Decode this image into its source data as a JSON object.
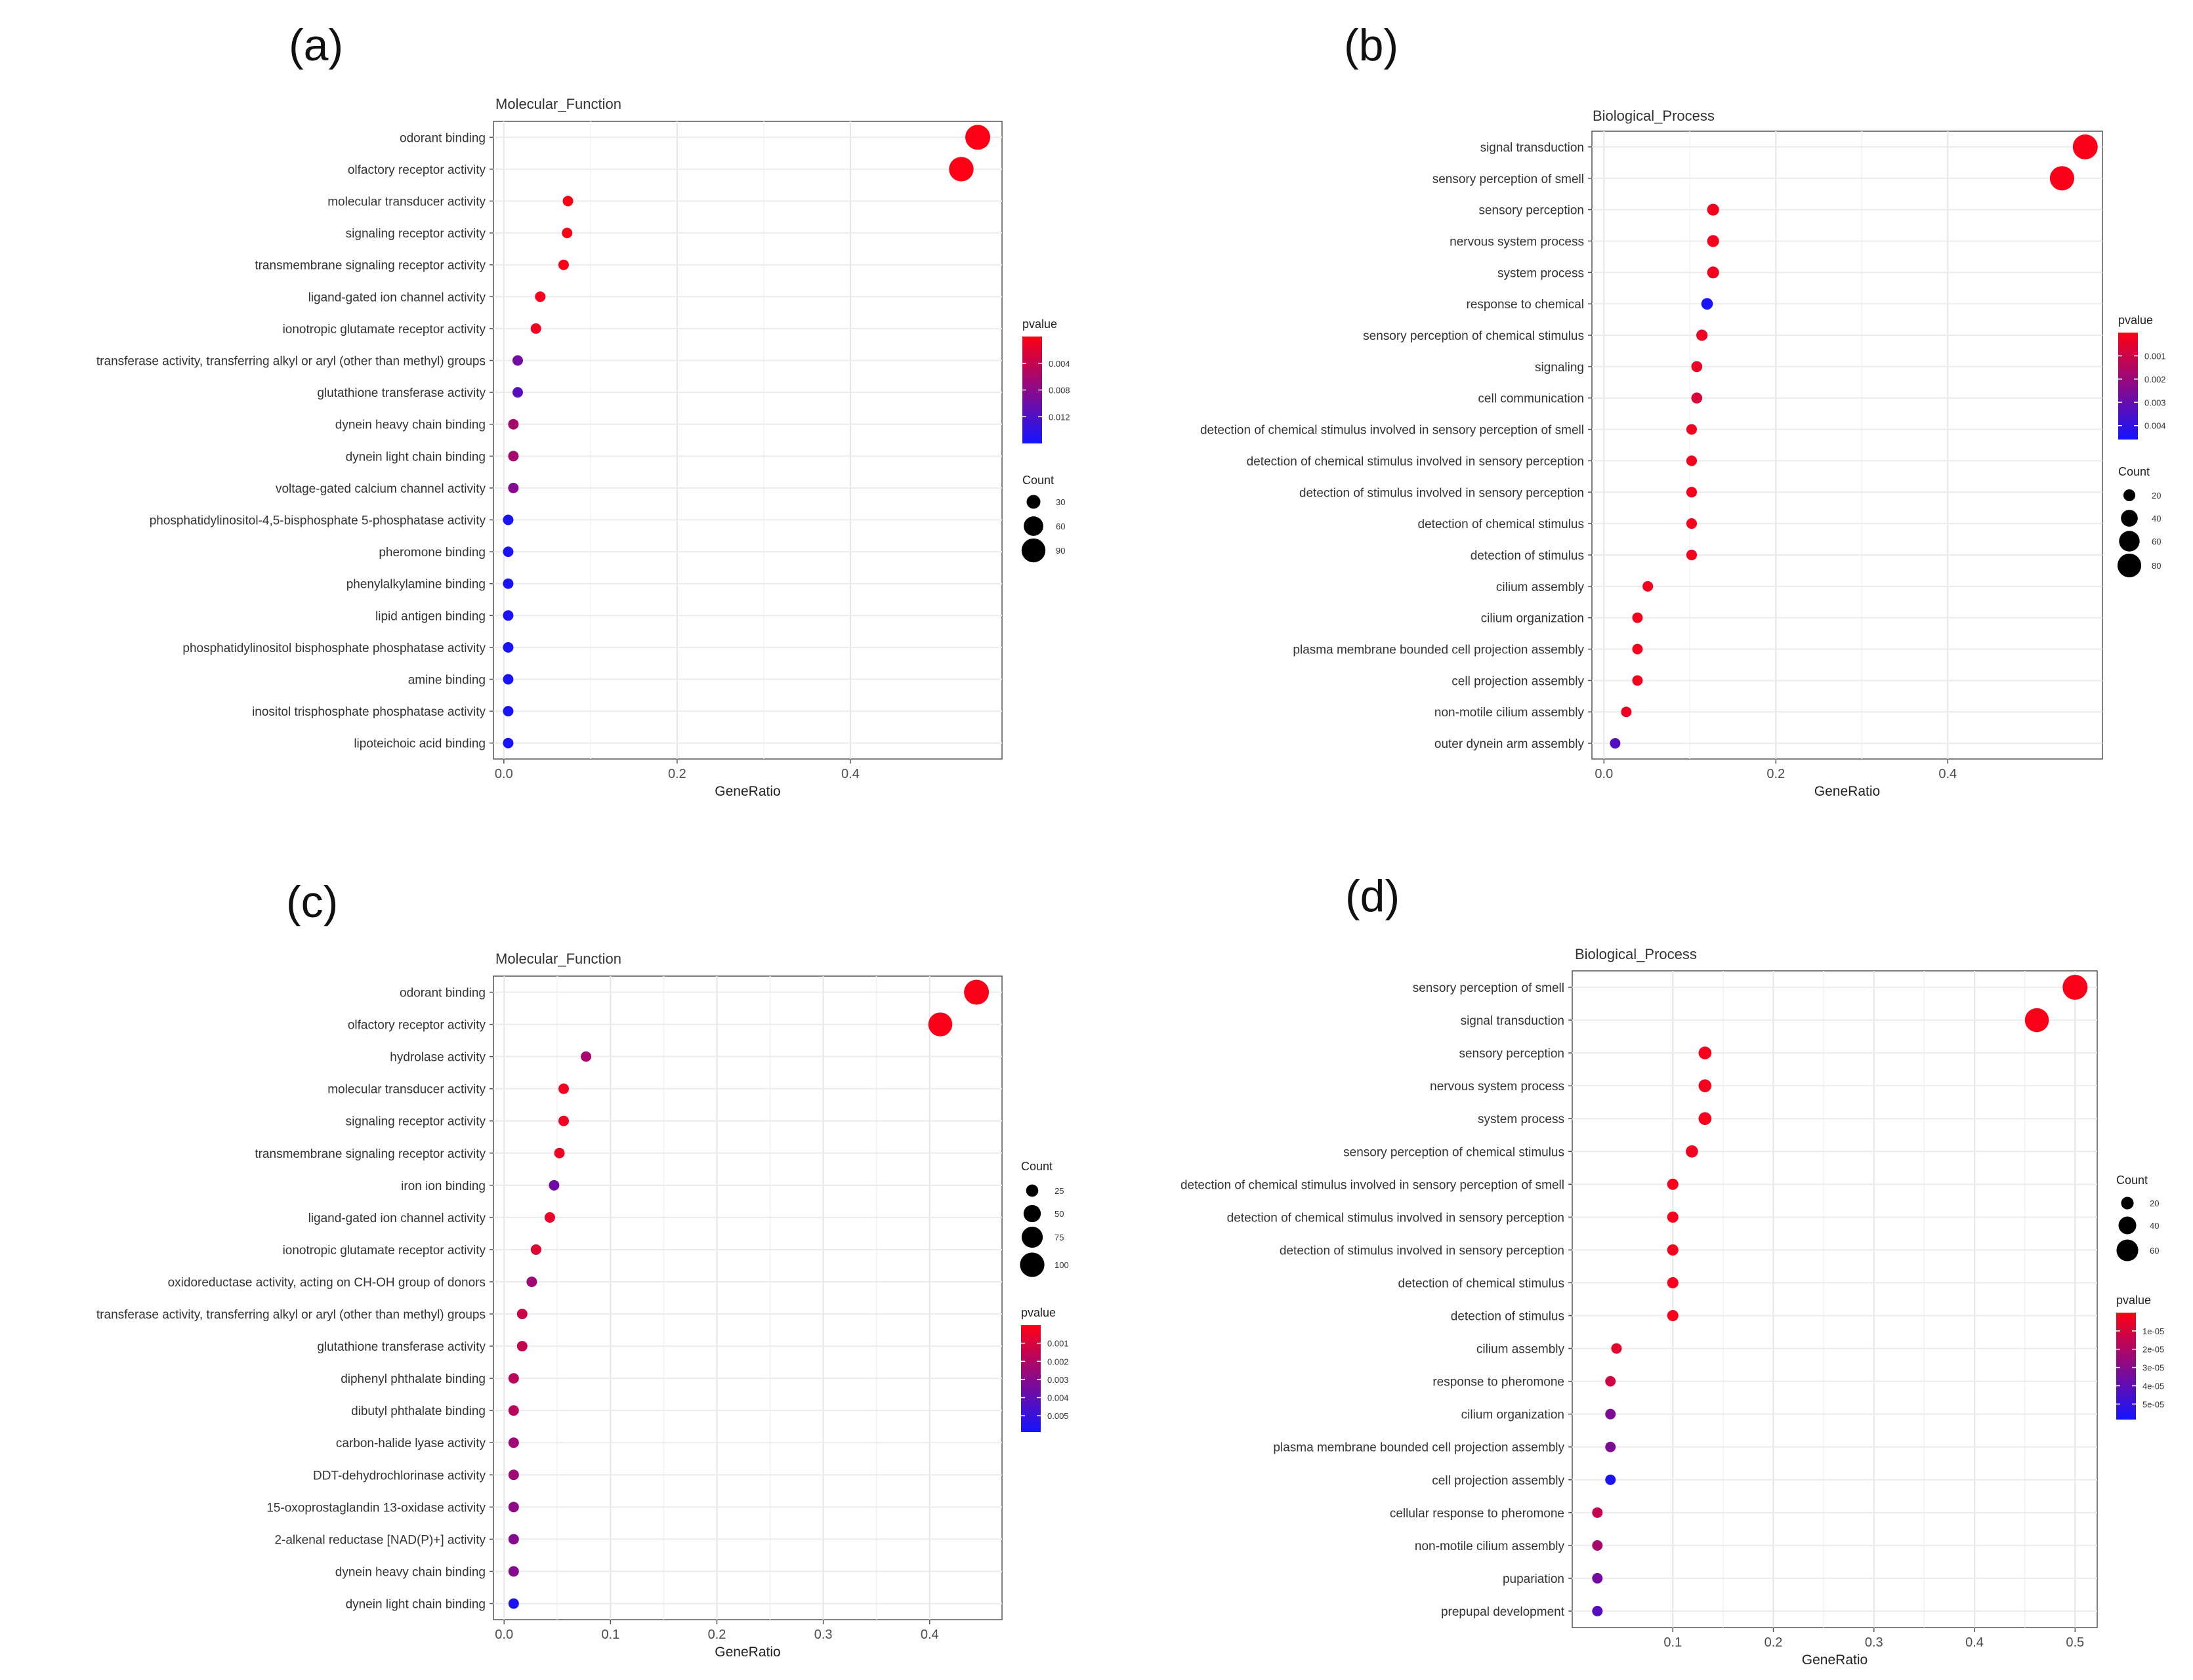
{
  "panels": [
    {
      "label": "(a)"
    },
    {
      "label": "(b)"
    },
    {
      "label": "(c)"
    },
    {
      "label": "(d)"
    }
  ],
  "chart_data": [
    {
      "type": "scatter",
      "title": "Molecular_Function",
      "xlabel": "GeneRatio",
      "xlim": [
        -0.012,
        0.575
      ],
      "xticks": [
        0.0,
        0.2,
        0.4
      ],
      "xtick_labels": [
        "0.0",
        "0.2",
        "0.4"
      ],
      "pvalue_legend": {
        "title": "pvalue",
        "ticks": [
          0.004,
          0.008,
          0.012
        ],
        "labels": [
          "0.004",
          "0.008",
          "0.012"
        ],
        "range": [
          0.0,
          0.016
        ]
      },
      "count_legend": {
        "title": "Count",
        "values": [
          30,
          60,
          90
        ],
        "labels": [
          "30",
          "60",
          "90"
        ]
      },
      "terms": [
        "odorant binding",
        "olfactory receptor activity",
        "molecular transducer activity",
        "signaling receptor activity",
        "transmembrane signaling receptor activity",
        "ligand-gated ion channel activity",
        "ionotropic glutamate receptor activity",
        "transferase activity, transferring alkyl or aryl (other than methyl) groups",
        "glutathione transferase activity",
        "dynein heavy chain binding",
        "dynein light chain binding",
        "voltage-gated calcium channel activity",
        "phosphatidylinositol-4,5-bisphosphate 5-phosphatase activity",
        "pheromone binding",
        "phenylalkylamine binding",
        "lipid antigen binding",
        "phosphatidylinositol bisphosphate phosphatase activity",
        "amine binding",
        "inositol trisphosphate phosphatase activity",
        "lipoteichoic acid binding"
      ],
      "gene_ratio": [
        0.547,
        0.528,
        0.074,
        0.073,
        0.069,
        0.042,
        0.037,
        0.016,
        0.016,
        0.011,
        0.011,
        0.011,
        0.005,
        0.005,
        0.005,
        0.005,
        0.005,
        0.005,
        0.005,
        0.005
      ],
      "pvalue": [
        0.0001,
        0.0001,
        0.0001,
        0.0001,
        0.0002,
        0.0006,
        0.0008,
        0.0095,
        0.0115,
        0.006,
        0.006,
        0.0085,
        0.0155,
        0.0155,
        0.0155,
        0.0155,
        0.0155,
        0.0155,
        0.0155,
        0.0155
      ],
      "count": [
        98,
        95,
        13,
        13,
        12,
        8,
        7,
        3,
        3,
        2,
        2,
        2,
        1,
        1,
        1,
        1,
        1,
        1,
        1,
        1
      ]
    },
    {
      "type": "scatter",
      "title": "Biological_Process",
      "xlabel": "GeneRatio",
      "xlim": [
        -0.014,
        0.58
      ],
      "xticks": [
        0.0,
        0.2,
        0.4
      ],
      "xtick_labels": [
        "0.0",
        "0.2",
        "0.4"
      ],
      "pvalue_legend": {
        "title": "pvalue",
        "ticks": [
          0.001,
          0.002,
          0.003,
          0.004
        ],
        "labels": [
          "0.001",
          "0.002",
          "0.003",
          "0.004"
        ],
        "range": [
          0.0,
          0.0046
        ]
      },
      "count_legend": {
        "title": "Count",
        "values": [
          20,
          40,
          60,
          80
        ],
        "labels": [
          "20",
          "40",
          "60",
          "80"
        ]
      },
      "terms": [
        "signal transduction",
        "sensory perception of smell",
        "sensory perception",
        "nervous system process",
        "system process",
        "response to chemical",
        "sensory perception of chemical stimulus",
        "signaling",
        "cell communication",
        "detection of chemical stimulus involved in sensory perception of smell",
        "detection of chemical stimulus involved in sensory perception",
        "detection of stimulus involved in sensory perception",
        "detection of chemical stimulus",
        "detection of stimulus",
        "cilium assembly",
        "cilium organization",
        "plasma membrane bounded cell projection assembly",
        "cell projection assembly",
        "non-motile cilium assembly",
        "outer dynein arm assembly"
      ],
      "gene_ratio": [
        0.56,
        0.533,
        0.127,
        0.127,
        0.127,
        0.12,
        0.114,
        0.108,
        0.108,
        0.102,
        0.102,
        0.102,
        0.102,
        0.102,
        0.051,
        0.039,
        0.039,
        0.039,
        0.026,
        0.013
      ],
      "pvalue": [
        0.0001,
        0.0001,
        0.0002,
        0.0002,
        0.0002,
        0.0045,
        0.0003,
        0.0004,
        0.0007,
        0.0002,
        0.0002,
        0.0002,
        0.0002,
        0.0002,
        0.0002,
        0.0002,
        0.0002,
        0.0002,
        0.0003,
        0.0034
      ],
      "count": [
        88,
        84,
        20,
        20,
        20,
        19,
        18,
        17,
        17,
        16,
        16,
        16,
        16,
        16,
        8,
        6,
        6,
        6,
        4,
        2
      ]
    },
    {
      "type": "scatter",
      "title": "Molecular_Function",
      "xlabel": "GeneRatio",
      "xlim": [
        -0.01,
        0.468
      ],
      "xticks": [
        0.0,
        0.1,
        0.2,
        0.3,
        0.4
      ],
      "xtick_labels": [
        "0.0",
        "0.1",
        "0.2",
        "0.3",
        "0.4"
      ],
      "count_legend": {
        "title": "Count",
        "values": [
          25,
          50,
          75,
          100
        ],
        "labels": [
          "25",
          "50",
          "75",
          "100"
        ]
      },
      "pvalue_legend": {
        "title": "pvalue",
        "ticks": [
          0.001,
          0.002,
          0.003,
          0.004,
          0.005
        ],
        "labels": [
          "0.001",
          "0.002",
          "0.003",
          "0.004",
          "0.005"
        ],
        "range": [
          0.0,
          0.0059
        ]
      },
      "terms": [
        "odorant binding",
        "olfactory receptor activity",
        "hydrolase activity",
        "molecular transducer activity",
        "signaling receptor activity",
        "transmembrane signaling receptor activity",
        "iron ion binding",
        "ligand-gated ion channel activity",
        "ionotropic glutamate receptor activity",
        "oxidoreductase activity, acting on CH-OH group of donors",
        "transferase activity, transferring alkyl or aryl (other than methyl) groups",
        "glutathione transferase activity",
        "diphenyl phthalate binding",
        "dibutyl phthalate binding",
        "carbon-halide lyase activity",
        "DDT-dehydrochlorinase activity",
        "15-oxoprostaglandin 13-oxidase activity",
        "2-alkenal reductase [NAD(P)+] activity",
        "dynein heavy chain binding",
        "dynein light chain binding"
      ],
      "gene_ratio": [
        0.444,
        0.41,
        0.077,
        0.056,
        0.056,
        0.052,
        0.047,
        0.043,
        0.03,
        0.026,
        0.017,
        0.017,
        0.009,
        0.009,
        0.009,
        0.009,
        0.009,
        0.009,
        0.009,
        0.009
      ],
      "pvalue": [
        0.0001,
        0.0001,
        0.0022,
        0.0003,
        0.0003,
        0.0004,
        0.0036,
        0.0006,
        0.0008,
        0.0024,
        0.0013,
        0.0015,
        0.0018,
        0.0018,
        0.0024,
        0.0024,
        0.0028,
        0.0031,
        0.0031,
        0.0057
      ],
      "count": [
        104,
        96,
        18,
        13,
        13,
        12,
        11,
        10,
        7,
        6,
        4,
        4,
        2,
        2,
        2,
        2,
        2,
        2,
        2,
        2
      ]
    },
    {
      "type": "scatter",
      "title": "Biological_Process",
      "xlabel": "GeneRatio",
      "xlim": [
        0.0,
        0.522
      ],
      "xticks": [
        0.1,
        0.2,
        0.3,
        0.4,
        0.5
      ],
      "xtick_labels": [
        "0.1",
        "0.2",
        "0.3",
        "0.4",
        "0.5"
      ],
      "count_legend": {
        "title": "Count",
        "values": [
          20,
          40,
          60
        ],
        "labels": [
          "20",
          "40",
          "60"
        ]
      },
      "pvalue_legend": {
        "title": "pvalue",
        "ticks": [
          1e-05,
          2e-05,
          3e-05,
          4e-05,
          5e-05
        ],
        "labels": [
          "1e-05",
          "2e-05",
          "3e-05",
          "4e-05",
          "5e-05"
        ],
        "range": [
          0.0,
          5.85e-05
        ]
      },
      "terms": [
        "sensory perception of smell",
        "signal transduction",
        "sensory perception",
        "nervous system process",
        "system process",
        "sensory perception of chemical stimulus",
        "detection of chemical stimulus involved in sensory perception of smell",
        "detection of chemical stimulus involved in sensory perception",
        "detection of stimulus involved in sensory perception",
        "detection of chemical stimulus",
        "detection of stimulus",
        "cilium assembly",
        "response to pheromone",
        "cilium organization",
        "plasma membrane bounded cell projection assembly",
        "cell projection assembly",
        "cellular response to pheromone",
        "non-motile cilium assembly",
        "pupariation",
        "prepupal development"
      ],
      "gene_ratio": [
        0.5,
        0.462,
        0.132,
        0.132,
        0.132,
        0.119,
        0.1,
        0.1,
        0.1,
        0.1,
        0.1,
        0.044,
        0.038,
        0.038,
        0.038,
        0.038,
        0.025,
        0.025,
        0.025,
        0.025
      ],
      "pvalue": [
        1e-06,
        1e-06,
        2e-06,
        2e-06,
        2e-06,
        3e-06,
        2e-06,
        2e-06,
        2e-06,
        2e-06,
        2e-06,
        6e-06,
        1.2e-05,
        3.2e-05,
        3.2e-05,
        5.7e-05,
        1.5e-05,
        2.2e-05,
        3.5e-05,
        4.2e-05
      ],
      "count": [
        79,
        73,
        21,
        21,
        21,
        19,
        16,
        16,
        16,
        16,
        16,
        7,
        6,
        6,
        6,
        6,
        4,
        4,
        4,
        4
      ]
    }
  ]
}
